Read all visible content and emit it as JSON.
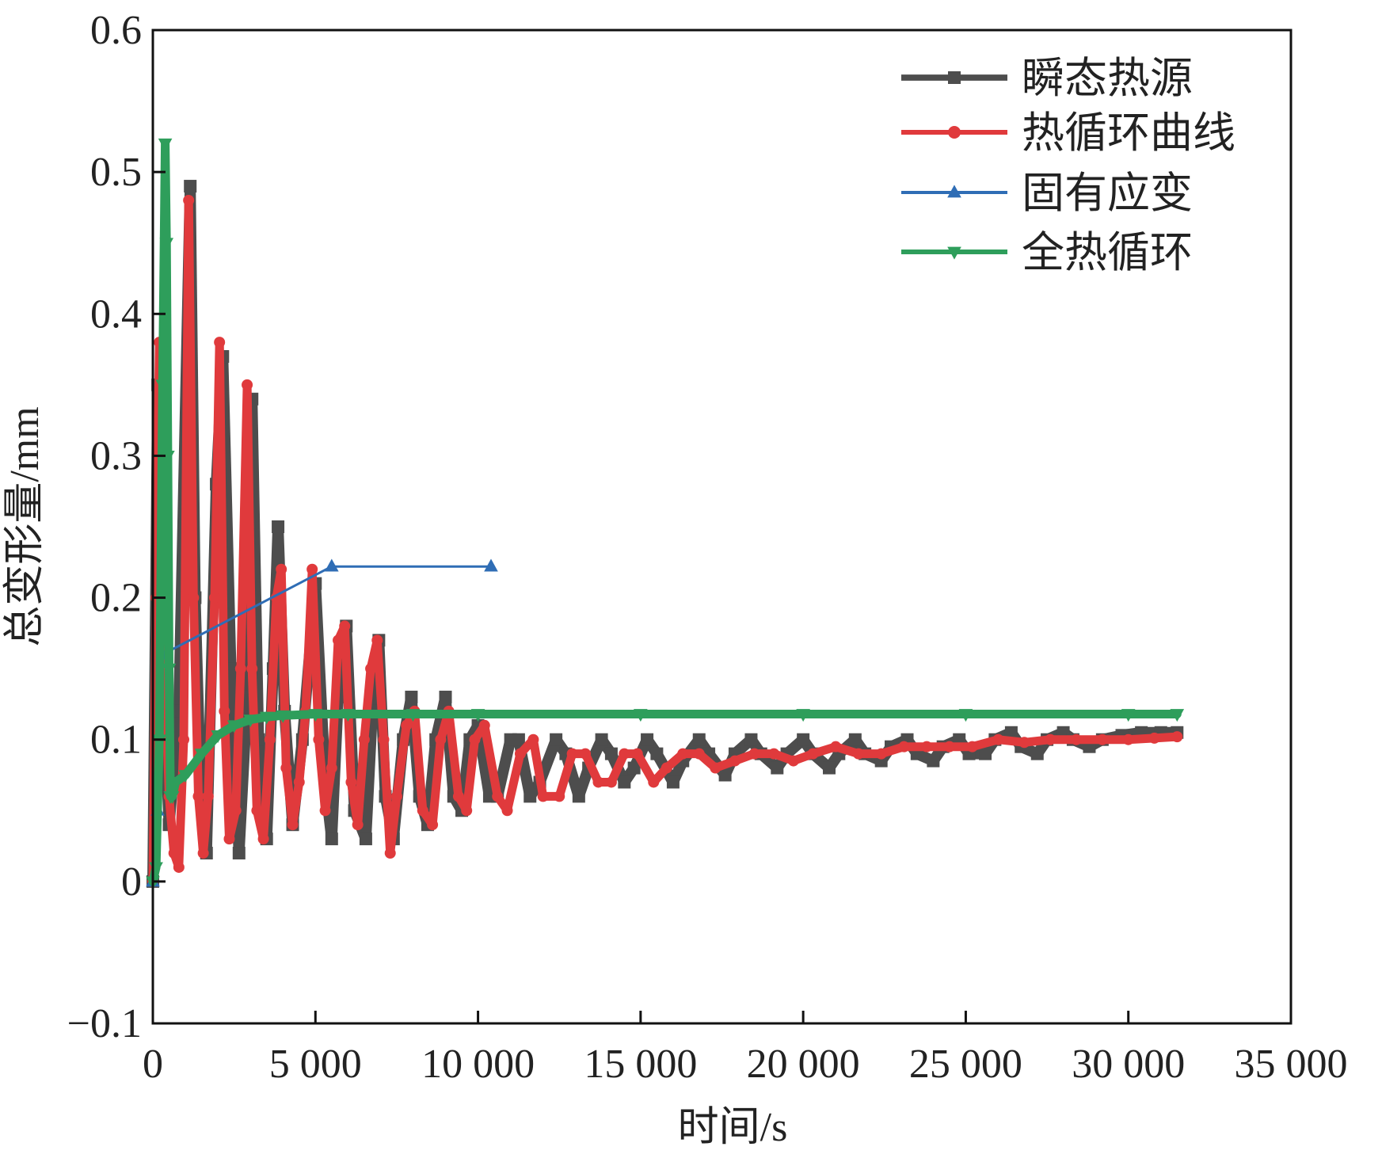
{
  "chart_data": {
    "type": "line",
    "title": "",
    "xlabel": "时间/s",
    "ylabel": "总变形量/mm",
    "xlim": [
      0,
      35000
    ],
    "ylim": [
      -0.1,
      0.6
    ],
    "xticks": [
      0,
      5000,
      10000,
      15000,
      20000,
      25000,
      30000,
      35000
    ],
    "xtick_labels": [
      "0",
      "5 000",
      "10 000",
      "15 000",
      "20 000",
      "25 000",
      "30 000",
      "35 000"
    ],
    "yticks": [
      -0.1,
      0,
      0.1,
      0.2,
      0.3,
      0.4,
      0.5,
      0.6
    ],
    "ytick_labels": [
      "−0.1",
      "0",
      "0.1",
      "0.2",
      "0.3",
      "0.4",
      "0.5",
      "0.6"
    ],
    "grid": false,
    "legend_position": "top-right",
    "series": [
      {
        "name": "瞬态热源",
        "color": "#4d4d4d",
        "marker": "square",
        "x": [
          0,
          150,
          300,
          500,
          800,
          1150,
          1300,
          1450,
          1650,
          1950,
          2150,
          2400,
          2650,
          2900,
          3050,
          3250,
          3500,
          3700,
          3850,
          4050,
          4300,
          4600,
          5000,
          5300,
          5500,
          5700,
          5950,
          6200,
          6550,
          6750,
          6950,
          7150,
          7400,
          7700,
          7950,
          8200,
          8450,
          8700,
          9000,
          9250,
          9500,
          9750,
          10000,
          10350,
          10600,
          11000,
          11250,
          11600,
          11900,
          12400,
          12700,
          13100,
          13400,
          13800,
          14100,
          14500,
          14800,
          15200,
          15500,
          16000,
          16300,
          16800,
          17100,
          17600,
          17900,
          18400,
          18700,
          19200,
          19500,
          20000,
          20300,
          20800,
          21100,
          21600,
          21900,
          22400,
          22700,
          23200,
          23500,
          24000,
          24300,
          24800,
          25100,
          25600,
          25900,
          26400,
          26700,
          27200,
          27500,
          28000,
          28300,
          28800,
          29200,
          29800,
          30400,
          31000,
          31500
        ],
        "y": [
          0.0,
          0.35,
          0.15,
          0.04,
          0.12,
          0.49,
          0.2,
          0.08,
          0.02,
          0.28,
          0.37,
          0.15,
          0.02,
          0.13,
          0.34,
          0.1,
          0.03,
          0.15,
          0.25,
          0.12,
          0.04,
          0.1,
          0.21,
          0.07,
          0.03,
          0.13,
          0.18,
          0.05,
          0.03,
          0.12,
          0.17,
          0.06,
          0.03,
          0.1,
          0.13,
          0.06,
          0.04,
          0.1,
          0.13,
          0.06,
          0.05,
          0.1,
          0.11,
          0.06,
          0.06,
          0.1,
          0.1,
          0.06,
          0.07,
          0.1,
          0.09,
          0.06,
          0.08,
          0.1,
          0.09,
          0.07,
          0.08,
          0.1,
          0.09,
          0.07,
          0.085,
          0.1,
          0.09,
          0.075,
          0.09,
          0.1,
          0.09,
          0.08,
          0.09,
          0.1,
          0.09,
          0.08,
          0.09,
          0.1,
          0.09,
          0.085,
          0.095,
          0.1,
          0.09,
          0.085,
          0.095,
          0.1,
          0.09,
          0.09,
          0.1,
          0.105,
          0.095,
          0.09,
          0.1,
          0.105,
          0.1,
          0.095,
          0.1,
          0.103,
          0.105,
          0.105,
          0.105
        ]
      },
      {
        "name": "热循环曲线",
        "color": "#e03a3c",
        "marker": "circle",
        "x": [
          0,
          100,
          200,
          300,
          500,
          650,
          800,
          950,
          1100,
          1250,
          1400,
          1550,
          1700,
          1900,
          2050,
          2200,
          2350,
          2550,
          2700,
          2900,
          3050,
          3200,
          3400,
          3600,
          3800,
          3950,
          4100,
          4300,
          4500,
          4700,
          4900,
          5100,
          5300,
          5500,
          5700,
          5900,
          6100,
          6300,
          6500,
          6700,
          6900,
          7100,
          7300,
          7500,
          7800,
          8050,
          8300,
          8600,
          8850,
          9100,
          9400,
          9650,
          9900,
          10200,
          10600,
          10900,
          11300,
          11700,
          12000,
          12500,
          12900,
          13300,
          13700,
          14100,
          14500,
          14900,
          15400,
          15800,
          16300,
          16800,
          17300,
          17900,
          18500,
          19100,
          19700,
          20300,
          21000,
          21700,
          22400,
          23100,
          23800,
          24500,
          25200,
          26000,
          26800,
          27600,
          28400,
          29200,
          30000,
          30800,
          31500
        ],
        "y": [
          0.0,
          0.2,
          0.38,
          0.2,
          0.06,
          0.02,
          0.01,
          0.1,
          0.48,
          0.2,
          0.06,
          0.02,
          0.06,
          0.2,
          0.38,
          0.12,
          0.03,
          0.05,
          0.15,
          0.35,
          0.15,
          0.05,
          0.03,
          0.1,
          0.2,
          0.22,
          0.08,
          0.04,
          0.07,
          0.12,
          0.22,
          0.1,
          0.05,
          0.08,
          0.17,
          0.18,
          0.07,
          0.04,
          0.1,
          0.15,
          0.17,
          0.1,
          0.02,
          0.06,
          0.11,
          0.12,
          0.05,
          0.04,
          0.1,
          0.12,
          0.06,
          0.05,
          0.1,
          0.11,
          0.06,
          0.05,
          0.09,
          0.1,
          0.06,
          0.06,
          0.09,
          0.09,
          0.07,
          0.07,
          0.09,
          0.09,
          0.07,
          0.08,
          0.09,
          0.09,
          0.08,
          0.085,
          0.09,
          0.09,
          0.085,
          0.09,
          0.095,
          0.09,
          0.09,
          0.095,
          0.095,
          0.095,
          0.095,
          0.1,
          0.098,
          0.1,
          0.1,
          0.1,
          0.1,
          0.101,
          0.102
        ]
      },
      {
        "name": "固有应变",
        "color": "#2f6db5",
        "marker": "triangle-up",
        "x": [
          0,
          150,
          300,
          5500,
          10400
        ],
        "y": [
          0.0,
          0.05,
          0.16,
          0.222,
          0.222
        ]
      },
      {
        "name": "全热循环",
        "color": "#2e9e5b",
        "marker": "triangle-down",
        "x": [
          0,
          100,
          200,
          300,
          380,
          420,
          460,
          500,
          540,
          600,
          700,
          1000,
          1500,
          2000,
          2500,
          3000,
          3500,
          4000,
          5000,
          6000,
          8000,
          10000,
          15000,
          20000,
          25000,
          30000,
          31500
        ],
        "y": [
          0.0,
          0.01,
          0.1,
          0.35,
          0.52,
          0.45,
          0.3,
          0.15,
          0.06,
          0.06,
          0.07,
          0.075,
          0.09,
          0.103,
          0.11,
          0.114,
          0.116,
          0.117,
          0.118,
          0.118,
          0.118,
          0.118,
          0.118,
          0.118,
          0.118,
          0.118,
          0.118
        ]
      }
    ]
  }
}
